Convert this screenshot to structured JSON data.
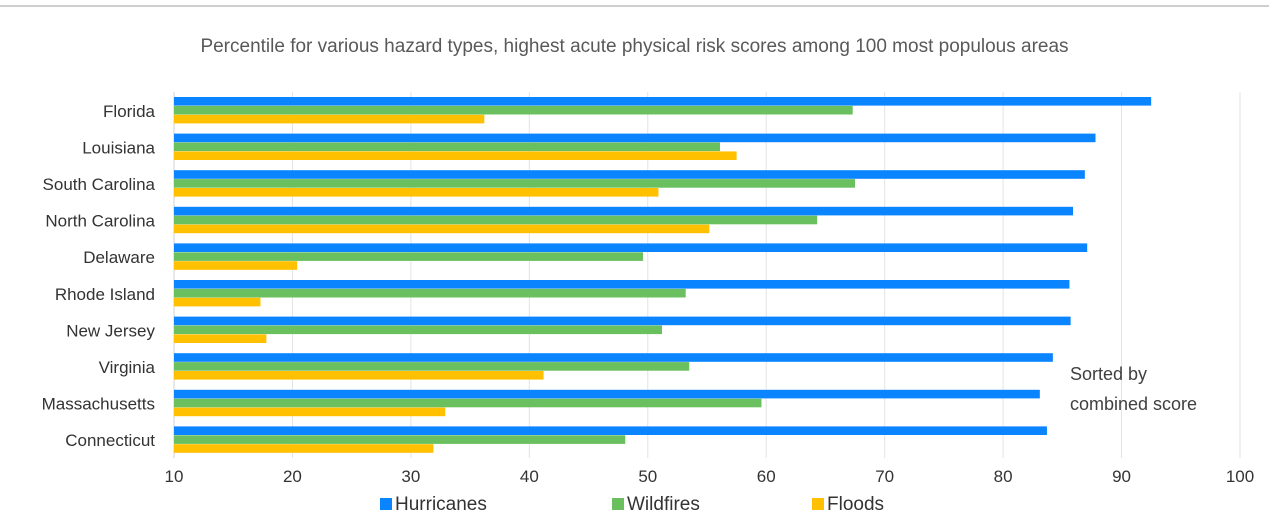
{
  "chart_data": {
    "type": "bar",
    "orientation": "horizontal",
    "title": "Percentile for various hazard types, highest acute physical risk scores among 100 most populous areas",
    "note_lines": [
      "Sorted by",
      "combined score"
    ],
    "categories": [
      "Florida",
      "Louisiana",
      "South Carolina",
      "North Carolina",
      "Delaware",
      "Rhode Island",
      "New Jersey",
      "Virginia",
      "Massachusetts",
      "Connecticut"
    ],
    "series": [
      {
        "name": "Hurricanes",
        "color": "#0a84ff",
        "values": [
          92.5,
          87.8,
          86.9,
          85.9,
          87.1,
          85.6,
          85.7,
          84.2,
          83.1,
          83.7
        ]
      },
      {
        "name": "Wildfires",
        "color": "#6abf5f",
        "values": [
          67.3,
          56.1,
          67.5,
          64.3,
          49.6,
          53.2,
          51.2,
          53.5,
          59.6,
          48.1
        ]
      },
      {
        "name": "Floods",
        "color": "#ffc000",
        "values": [
          36.2,
          57.5,
          50.9,
          55.2,
          20.4,
          17.3,
          17.8,
          41.2,
          32.9,
          31.9
        ]
      }
    ],
    "xlim": [
      10,
      100
    ],
    "xticks": [
      10,
      20,
      30,
      40,
      50,
      60,
      70,
      80,
      90,
      100
    ],
    "grid": "vertical",
    "legend": "bottom"
  }
}
